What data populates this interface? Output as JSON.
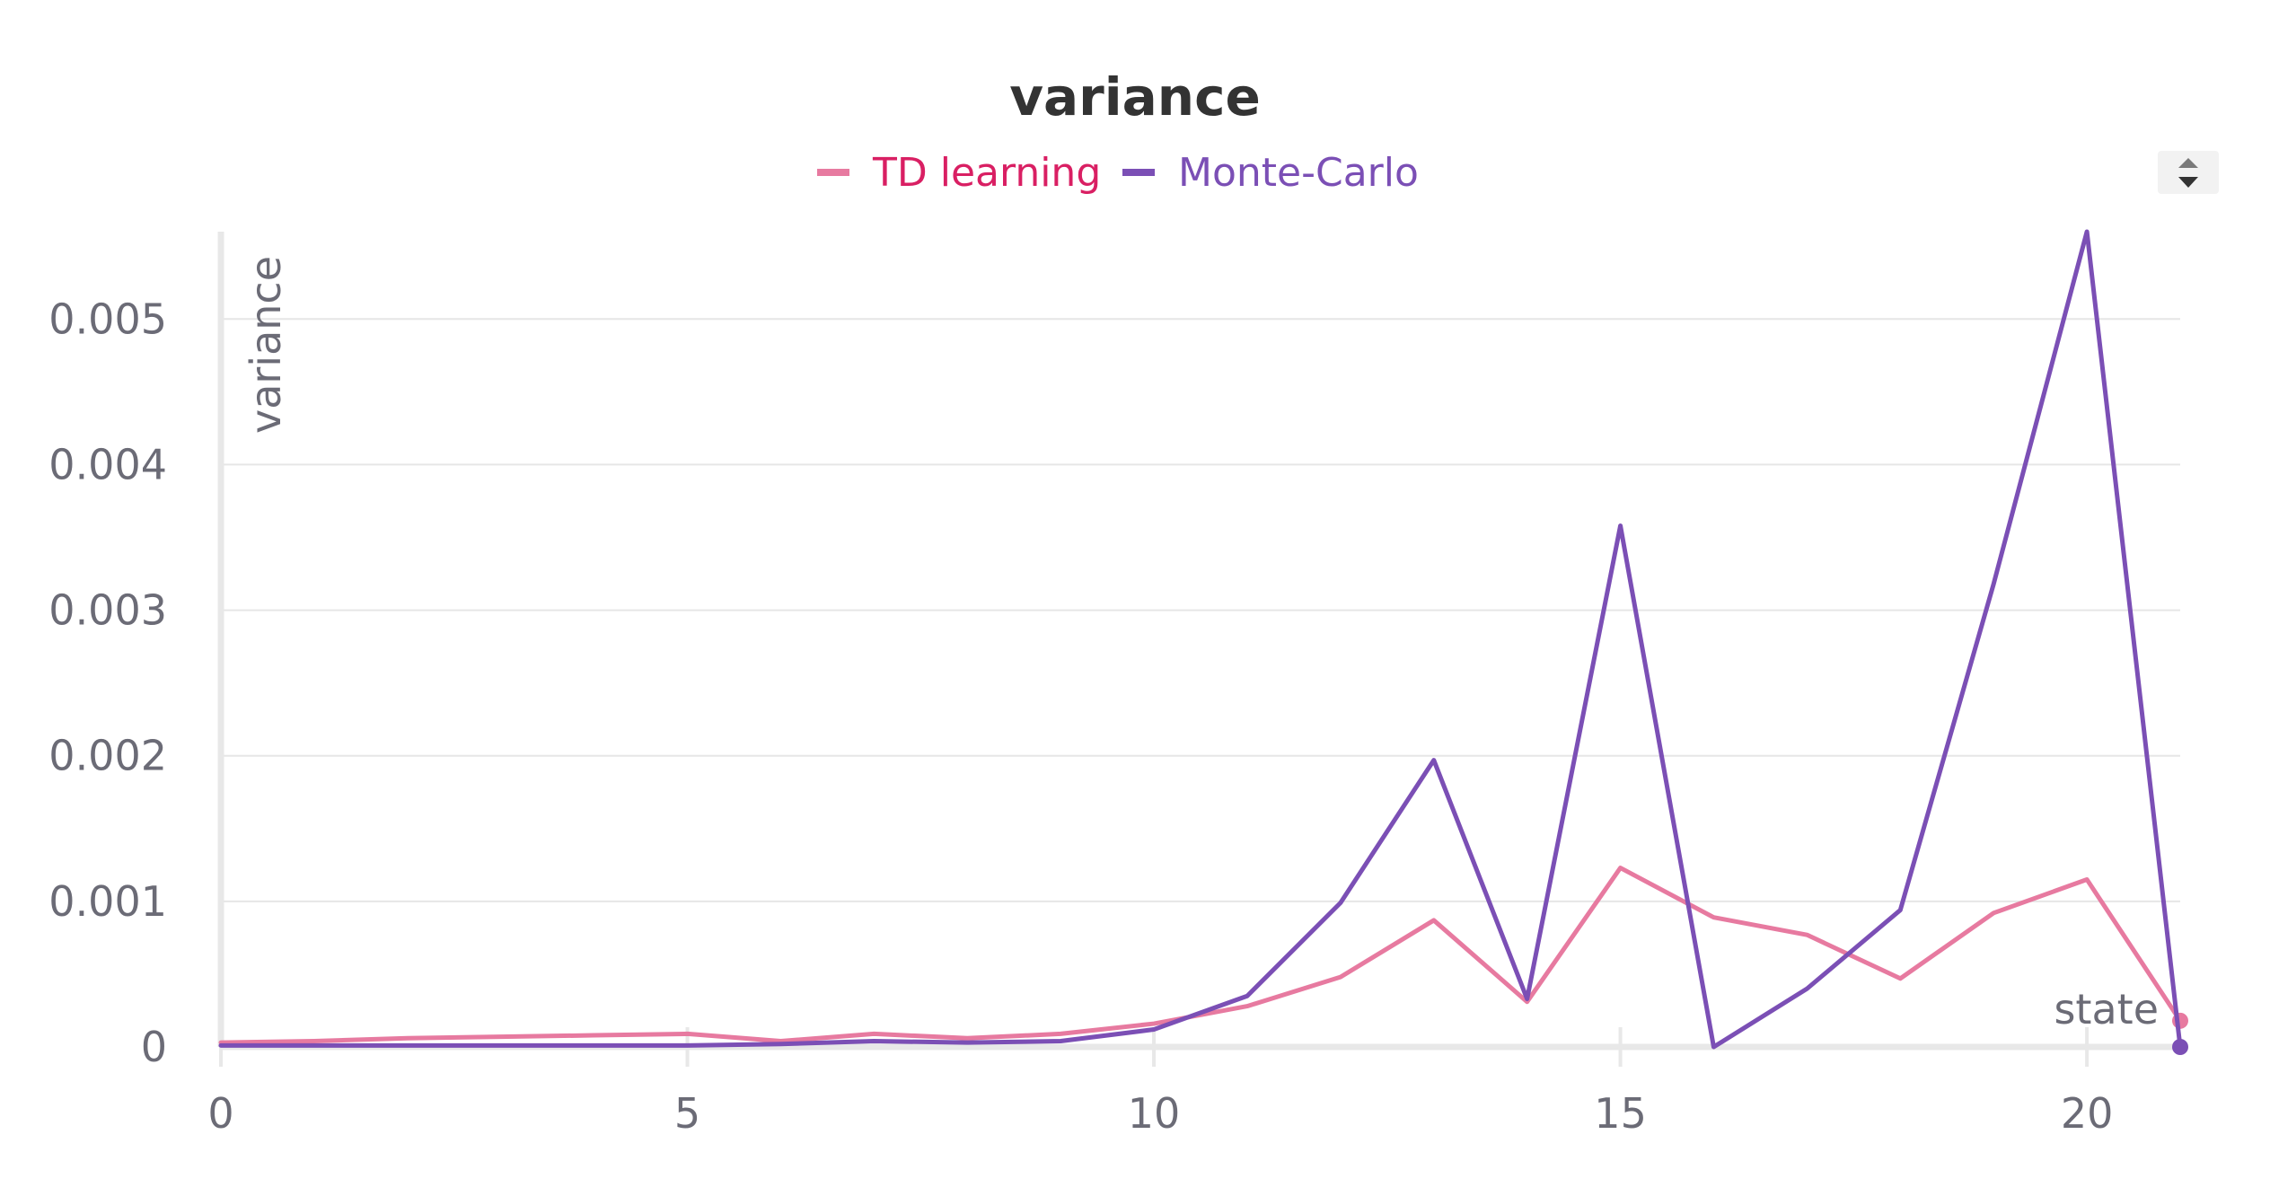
{
  "chart_data": {
    "type": "line",
    "title": "variance",
    "xlabel": "state",
    "ylabel": "variance",
    "x": [
      0,
      1,
      2,
      3,
      4,
      5,
      6,
      7,
      8,
      9,
      10,
      11,
      12,
      13,
      14,
      15,
      16,
      17,
      18,
      19,
      20,
      21
    ],
    "xlim": [
      0,
      21
    ],
    "ylim": [
      0,
      0.0056
    ],
    "xticks": [
      0,
      5,
      10,
      15,
      20
    ],
    "xtick_labels": [
      "0",
      "5",
      "10",
      "15",
      "20"
    ],
    "yticks": [
      0,
      0.001,
      0.002,
      0.003,
      0.004,
      0.005
    ],
    "ytick_labels": [
      "0",
      "0.001",
      "0.002",
      "0.003",
      "0.004",
      "0.005"
    ],
    "grid": true,
    "legend_position": "top-center",
    "series": [
      {
        "name": "TD learning",
        "color": "#e77aa0",
        "label_color": "#d91f63",
        "values": [
          3e-05,
          4e-05,
          6e-05,
          7e-05,
          8e-05,
          9e-05,
          4e-05,
          9e-05,
          6e-05,
          9e-05,
          0.00016,
          0.00028,
          0.00048,
          0.00087,
          0.00031,
          0.00123,
          0.00089,
          0.00077,
          0.00047,
          0.00092,
          0.00115,
          0.00018
        ]
      },
      {
        "name": "Monte-Carlo",
        "color": "#7b4fb5",
        "label_color": "#7b4fb5",
        "values": [
          1e-05,
          1e-05,
          1e-05,
          1e-05,
          1e-05,
          1e-05,
          2e-05,
          4e-05,
          3e-05,
          4e-05,
          0.00012,
          0.00035,
          0.00099,
          0.00197,
          0.00033,
          0.00358,
          0.0,
          0.0004,
          0.00094,
          0.00318,
          0.0056,
          0.0
        ]
      }
    ]
  },
  "controls": {
    "legend_scroll_icon": "up-down-arrows-icon"
  }
}
